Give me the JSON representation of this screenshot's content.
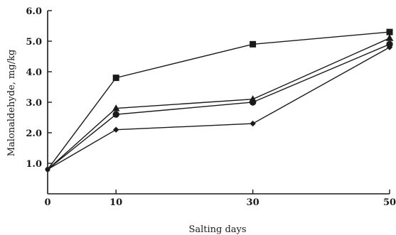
{
  "chart_data": {
    "type": "line",
    "xlabel": "Salting days",
    "ylabel": "Malonaldehyde,  mg/kg",
    "x": [
      0,
      10,
      30,
      50
    ],
    "x_tick_labels": [
      "0",
      "10",
      "30",
      "50"
    ],
    "y_ticks": [
      1.0,
      2.0,
      3.0,
      4.0,
      5.0,
      6.0
    ],
    "y_tick_labels": [
      "1.0",
      "2.0",
      "3.0",
      "4.0",
      "5.0",
      "6.0"
    ],
    "xlim": [
      0,
      50
    ],
    "ylim": [
      0,
      6.0
    ],
    "grid": false,
    "legend": "none",
    "series": [
      {
        "marker": "square",
        "values": [
          0.8,
          3.8,
          4.9,
          5.3
        ]
      },
      {
        "marker": "triangle",
        "values": [
          0.8,
          2.8,
          3.1,
          5.1
        ]
      },
      {
        "marker": "circle",
        "values": [
          0.8,
          2.6,
          3.0,
          4.9
        ]
      },
      {
        "marker": "diamond",
        "values": [
          0.8,
          2.1,
          2.3,
          4.8
        ]
      }
    ]
  }
}
